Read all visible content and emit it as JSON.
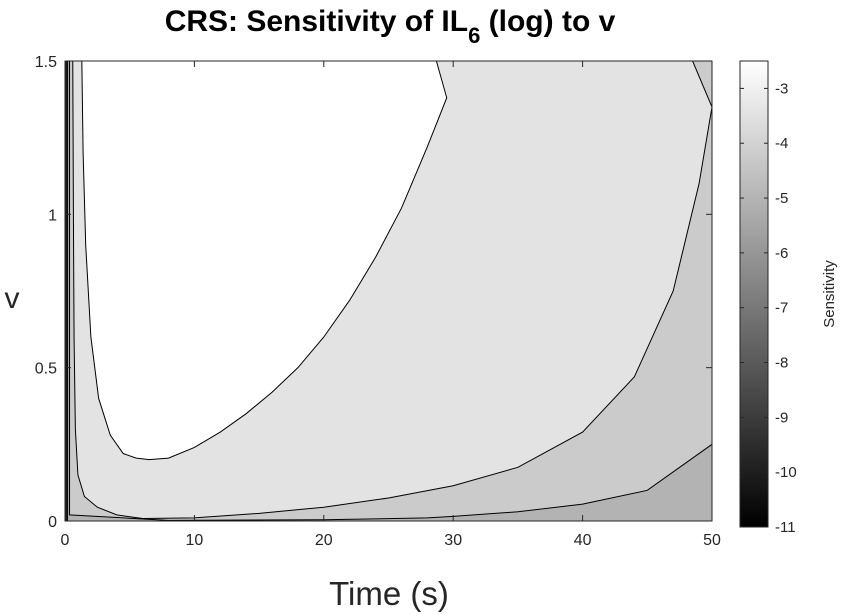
{
  "chart_data": {
    "type": "contour",
    "title_parts": [
      "CRS: Sensitivity of IL",
      "6",
      " (log) to v"
    ],
    "xlabel": "Time (s)",
    "ylabel": "v",
    "xlim": [
      0,
      50
    ],
    "ylim": [
      0,
      1.5
    ],
    "xticks": [
      0,
      10,
      20,
      30,
      40,
      50
    ],
    "yticks": [
      0,
      0.5,
      1,
      1.5
    ],
    "xtick_labels": [
      "0",
      "10",
      "20",
      "30",
      "40",
      "50"
    ],
    "ytick_labels": [
      "0",
      "0.5",
      "1",
      "1.5"
    ],
    "colorbar": {
      "label": "Sensitivity",
      "range": [
        -11,
        -2.5
      ],
      "ticks": [
        -11,
        -10,
        -9,
        -8,
        -7,
        -6,
        -5,
        -4,
        -3
      ],
      "tick_labels": [
        "-11",
        "-10",
        "-9",
        "-8",
        "-7",
        "-6",
        "-5",
        "-4",
        "-3"
      ]
    },
    "contour_levels": [
      {
        "name": "region-above-level-3",
        "color": "#ffffff",
        "boundary": [
          [
            1.3,
            1.5
          ],
          [
            1.4,
            1.2
          ],
          [
            1.6,
            0.9
          ],
          [
            2.0,
            0.6
          ],
          [
            2.6,
            0.4
          ],
          [
            3.5,
            0.28
          ],
          [
            4.5,
            0.22
          ],
          [
            5.5,
            0.205
          ],
          [
            6.5,
            0.2
          ],
          [
            8,
            0.205
          ],
          [
            10,
            0.24
          ],
          [
            12,
            0.29
          ],
          [
            14,
            0.35
          ],
          [
            16,
            0.42
          ],
          [
            18,
            0.5
          ],
          [
            20,
            0.6
          ],
          [
            22,
            0.72
          ],
          [
            24,
            0.86
          ],
          [
            26,
            1.02
          ],
          [
            28,
            1.22
          ],
          [
            29.5,
            1.38
          ],
          [
            28.7,
            1.5
          ]
        ]
      },
      {
        "name": "band-level-3-to-4",
        "color": "#e3e3e3",
        "boundary": [
          [
            0.6,
            1.5
          ],
          [
            0.65,
            1.0
          ],
          [
            0.7,
            0.6
          ],
          [
            0.8,
            0.3
          ],
          [
            1.0,
            0.15
          ],
          [
            1.5,
            0.08
          ],
          [
            2.5,
            0.045
          ],
          [
            4,
            0.02
          ],
          [
            6,
            0.008
          ],
          [
            10,
            0.01
          ],
          [
            15,
            0.025
          ],
          [
            20,
            0.045
          ],
          [
            25,
            0.075
          ],
          [
            30,
            0.115
          ],
          [
            35,
            0.175
          ],
          [
            40,
            0.29
          ],
          [
            44,
            0.47
          ],
          [
            47,
            0.75
          ],
          [
            49,
            1.1
          ],
          [
            50,
            1.35
          ],
          [
            48.5,
            1.5
          ]
        ]
      },
      {
        "name": "band-level-4-to-5",
        "color": "#cbcbcb",
        "boundary": [
          [
            0.35,
            1.5
          ],
          [
            0.35,
            0.02
          ],
          [
            8,
            0.002
          ],
          [
            20,
            0.004
          ],
          [
            28,
            0.01
          ],
          [
            30,
            0.015
          ],
          [
            35,
            0.03
          ],
          [
            40,
            0.055
          ],
          [
            45,
            0.1
          ],
          [
            50,
            0.25
          ]
        ]
      },
      {
        "name": "band-level-5-to-6",
        "color": "#b3b3b3",
        "boundary": [
          [
            0.2,
            1.5
          ],
          [
            0.2,
            0.0
          ],
          [
            50,
            0.0
          ],
          [
            50,
            0.02
          ]
        ]
      },
      {
        "name": "band-level-6-to-7",
        "color": "#8a8a8a",
        "boundary": [
          [
            0.1,
            1.5
          ],
          [
            0.1,
            0.0
          ]
        ]
      },
      {
        "name": "band-level-below-7",
        "color": "#3a3a3a",
        "boundary": [
          [
            0.0,
            1.5
          ],
          [
            0.0,
            0.0
          ]
        ]
      }
    ]
  }
}
